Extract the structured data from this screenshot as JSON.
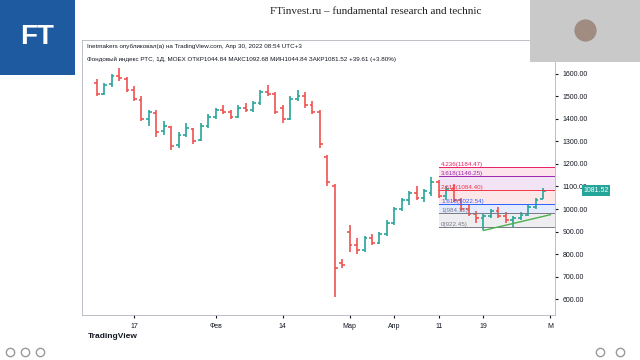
{
  "chart_data": {
    "type": "ohlc",
    "header": [
      "Inetmakers опубликовал(а) на TradingView.com, Апр 30, 2022 08:54 UTC+3",
      "Фондовый индекс РТС, 1Д, MOEX ОТКР1044.84 МАКС1092.68 МИН1044.84 ЗАКР1081.52 +39.61 (+3.80%)"
    ],
    "categories": [
      null,
      null,
      null,
      null,
      null,
      "17",
      null,
      null,
      null,
      null,
      null,
      null,
      null,
      null,
      null,
      null,
      "Фев",
      null,
      null,
      null,
      null,
      null,
      null,
      null,
      null,
      "14",
      null,
      null,
      null,
      null,
      null,
      null,
      null,
      null,
      "Мар",
      null,
      null,
      null,
      null,
      null,
      "Апр",
      null,
      null,
      null,
      null,
      null,
      "11",
      null,
      null,
      null,
      null,
      null,
      "19",
      null,
      null,
      null,
      null,
      null,
      null,
      null,
      null,
      "М"
    ],
    "open": [
      1560,
      1510,
      1555,
      1590,
      1575,
      1530,
      1485,
      1400,
      1425,
      1345,
      1365,
      1285,
      1330,
      1355,
      1305,
      1370,
      1410,
      1440,
      1430,
      1410,
      1450,
      1440,
      1470,
      1520,
      1510,
      1450,
      1400,
      1490,
      1500,
      1460,
      1430,
      1230,
      1100,
      760,
      900,
      840,
      820,
      870,
      850,
      890,
      940,
      1000,
      1040,
      1070,
      1050,
      1070,
      1120,
      1060,
      1090,
      1040,
      1000,
      980,
      960,
      970,
      990,
      970,
      950,
      960,
      975,
      1010,
      1044.84,
      null
    ],
    "high": [
      1575,
      1560,
      1600,
      1625,
      1585,
      1545,
      1500,
      1440,
      1440,
      1390,
      1370,
      1340,
      1380,
      1360,
      1380,
      1420,
      1450,
      1460,
      1440,
      1460,
      1470,
      1480,
      1530,
      1550,
      1520,
      1460,
      1500,
      1530,
      1520,
      1480,
      1440,
      1240,
      1110,
      780,
      930,
      870,
      880,
      890,
      900,
      950,
      1010,
      1050,
      1080,
      1100,
      1090,
      1140,
      1130,
      1100,
      1110,
      1050,
      1020,
      990,
      980,
      1000,
      1010,
      985,
      970,
      985,
      1020,
      1050,
      1092.68,
      null
    ],
    "low": [
      1500,
      1505,
      1540,
      1570,
      1520,
      1480,
      1390,
      1370,
      1320,
      1330,
      1260,
      1270,
      1320,
      1290,
      1300,
      1360,
      1400,
      1420,
      1400,
      1405,
      1430,
      1430,
      1460,
      1500,
      1420,
      1380,
      1395,
      1480,
      1450,
      1420,
      1270,
      1100,
      612,
      740,
      810,
      800,
      810,
      840,
      845,
      880,
      930,
      990,
      1020,
      1040,
      1030,
      1060,
      1050,
      1040,
      1030,
      990,
      970,
      940,
      905,
      960,
      960,
      940,
      920,
      950,
      970,
      1000,
      1044.84,
      null
    ],
    "close": [
      1510,
      1550,
      1590,
      1580,
      1530,
      1490,
      1400,
      1430,
      1340,
      1370,
      1280,
      1330,
      1360,
      1300,
      1370,
      1410,
      1440,
      1430,
      1410,
      1450,
      1440,
      1470,
      1520,
      1510,
      1430,
      1400,
      1490,
      1500,
      1460,
      1430,
      1290,
      1120,
      740,
      750,
      840,
      820,
      870,
      850,
      890,
      940,
      1000,
      1040,
      1070,
      1050,
      1080,
      1120,
      1060,
      1090,
      1040,
      1000,
      980,
      960,
      970,
      990,
      970,
      950,
      960,
      975,
      1010,
      1042,
      1081.52,
      null
    ],
    "colors": [
      "#ef5350",
      "#26a69a",
      "#26a69a",
      "#ef5350",
      "#ef5350",
      "#ef5350",
      "#ef5350",
      "#26a69a",
      "#ef5350",
      "#26a69a",
      "#ef5350",
      "#26a69a",
      "#26a69a",
      "#ef5350",
      "#26a69a",
      "#26a69a",
      "#26a69a",
      "#ef5350",
      "#ef5350",
      "#26a69a",
      "#ef5350",
      "#26a69a",
      "#26a69a",
      "#ef5350",
      "#ef5350",
      "#ef5350",
      "#26a69a",
      "#26a69a",
      "#ef5350",
      "#ef5350",
      "#ef5350",
      "#ef5350",
      "#ef5350",
      "#ef5350",
      "#ef5350",
      "#ef5350",
      "#26a69a",
      "#ef5350",
      "#26a69a",
      "#26a69a",
      "#26a69a",
      "#26a69a",
      "#26a69a",
      "#ef5350",
      "#26a69a",
      "#26a69a",
      "#ef5350",
      "#26a69a",
      "#ef5350",
      "#ef5350",
      "#ef5350",
      "#ef5350",
      "#26a69a",
      "#26a69a",
      "#ef5350",
      "#ef5350",
      "#26a69a",
      "#26a69a",
      "#26a69a",
      "#26a69a",
      "#26a69a",
      null
    ],
    "ylim": [
      530,
      1750
    ],
    "yticks": [
      {
        "value": 600,
        "label": "600.00"
      },
      {
        "value": 700,
        "label": "700.00"
      },
      {
        "value": 800,
        "label": "800.00"
      },
      {
        "value": 900,
        "label": "900.00"
      },
      {
        "value": 1000,
        "label": "1000.00"
      },
      {
        "value": 1100,
        "label": "1100.00"
      },
      {
        "value": 1200,
        "label": "1200.00"
      },
      {
        "value": 1300,
        "label": "1300.00"
      },
      {
        "value": 1400,
        "label": "1400.00"
      },
      {
        "value": 1500,
        "label": "1500.00"
      },
      {
        "value": 1600,
        "label": "1600.00"
      }
    ],
    "grid": false,
    "fibonacci": {
      "start": 46,
      "levels": [
        {
          "value": 1184.47,
          "label": "4.236(1184.47)",
          "color": "#e91e63"
        },
        {
          "value": 1146.25,
          "label": "3.618(1146.25)",
          "color": "#9c27b0"
        },
        {
          "value": 1084.4,
          "label": "2.618(1084.40)",
          "color": "#f23645"
        },
        {
          "value": 1022.54,
          "label": "1.618(1022.54)",
          "color": "#2962ff"
        },
        {
          "value": 984.32,
          "label": "1(984.32)",
          "color": "#787b86"
        },
        {
          "value": 922.45,
          "label": "0(922.45)",
          "color": "#787b86"
        }
      ]
    },
    "trend_line": {
      "x": [
        52,
        61
      ],
      "y": [
        905,
        975
      ],
      "color": "#4caf50"
    },
    "last_price": {
      "value": 1081.52,
      "label": "1081.52",
      "color": "#26a69a"
    }
  },
  "page": {
    "title": "FTinvest.ru – fundamental research and technic",
    "logo": "FT",
    "logo_color": "#1e5aa0",
    "watermark": "TradingView"
  }
}
